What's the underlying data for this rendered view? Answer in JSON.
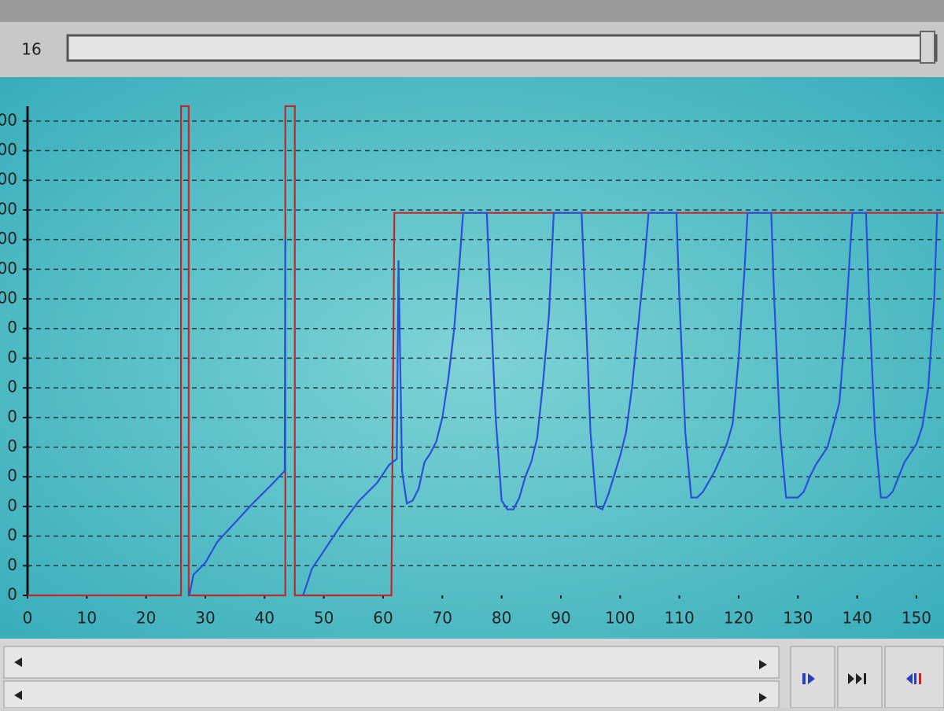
{
  "top_bar": {
    "value": 16
  },
  "chart_data": {
    "type": "line",
    "xlim": [
      0,
      154.6
    ],
    "xticks": [
      0,
      10,
      20,
      30,
      40,
      50,
      60,
      70,
      80,
      90,
      100,
      110,
      120,
      130,
      140,
      150
    ],
    "ylim": [
      0,
      1650
    ],
    "yticks": [
      {
        "value": 0,
        "label": "0"
      },
      {
        "value": 100,
        "label": "0"
      },
      {
        "value": 200,
        "label": "0"
      },
      {
        "value": 300,
        "label": "0"
      },
      {
        "value": 400,
        "label": "0"
      },
      {
        "value": 500,
        "label": "0"
      },
      {
        "value": 600,
        "label": "0"
      },
      {
        "value": 700,
        "label": "0"
      },
      {
        "value": 800,
        "label": "0"
      },
      {
        "value": 900,
        "label": "0"
      },
      {
        "value": 1000,
        "label": "00"
      },
      {
        "value": 1100,
        "label": "00"
      },
      {
        "value": 1200,
        "label": "00"
      },
      {
        "value": 1300,
        "label": "00"
      },
      {
        "value": 1400,
        "label": "00"
      },
      {
        "value": 1500,
        "label": "00"
      },
      {
        "value": 1600,
        "label": "00"
      }
    ],
    "grid": true,
    "series": [
      {
        "color": "#c0282a",
        "x": [
          0,
          25.9,
          25.9,
          27.2,
          27.2,
          43.5,
          43.5,
          45.1,
          45.1,
          61.4,
          61.9,
          154.6
        ],
        "values": [
          0,
          0,
          1650,
          1650,
          0,
          0,
          1650,
          1650,
          0,
          0,
          1290,
          1290
        ]
      },
      {
        "color": "#2a4fd8",
        "x": [
          27.3,
          28,
          30,
          32,
          35,
          38,
          41,
          43.4,
          43.5,
          45,
          46.5,
          48,
          50,
          53,
          56,
          59,
          61,
          62.3,
          62.6,
          63.2,
          64,
          65,
          66,
          67,
          68,
          69,
          70,
          71,
          72,
          73,
          73.5,
          77.5,
          78,
          79,
          80,
          81,
          82,
          83,
          84,
          85,
          86,
          87,
          88,
          88.8,
          93.5,
          94,
          95,
          96,
          97,
          98,
          100,
          101,
          102,
          103,
          104,
          104.8,
          109.5,
          110,
          111,
          112,
          113,
          114,
          116,
          118,
          119,
          120,
          121,
          121.5,
          125.5,
          126,
          127,
          128,
          130,
          131,
          132,
          133,
          135,
          137,
          138,
          139.2,
          141.5,
          142,
          143,
          144,
          145,
          146,
          147,
          148,
          150,
          151,
          152,
          153,
          153.5
        ],
        "values": [
          0,
          70,
          110,
          180,
          245,
          310,
          370,
          420,
          1200,
          null,
          0,
          90,
          150,
          240,
          320,
          380,
          440,
          460,
          1130,
          420,
          310,
          320,
          360,
          450,
          480,
          520,
          600,
          730,
          900,
          1150,
          1290,
          1290,
          1050,
          600,
          320,
          290,
          290,
          330,
          400,
          450,
          530,
          720,
          950,
          1290,
          1290,
          1050,
          550,
          300,
          290,
          340,
          470,
          550,
          700,
          900,
          1100,
          1290,
          1290,
          1000,
          550,
          330,
          330,
          350,
          420,
          510,
          580,
          800,
          1100,
          1290,
          1290,
          1000,
          550,
          330,
          330,
          350,
          400,
          440,
          500,
          650,
          900,
          1290,
          1290,
          1000,
          550,
          330,
          330,
          350,
          400,
          450,
          510,
          570,
          700,
          1000,
          1290
        ]
      }
    ]
  }
}
